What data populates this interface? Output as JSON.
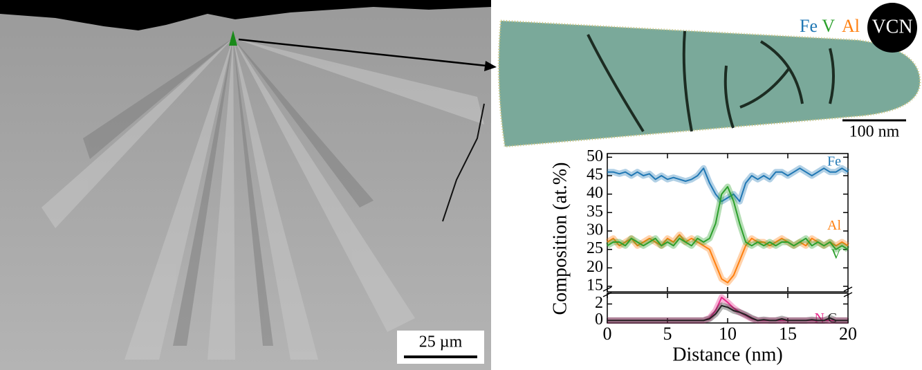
{
  "micrograph": {
    "scale_bar": "25 µm"
  },
  "reconstruction": {
    "legend": [
      "Fe",
      "V",
      "Al"
    ],
    "badge": "VCN",
    "scale_bar": "100 nm"
  },
  "chart_data": [
    {
      "type": "line",
      "ylabel": "Composition (at.%)",
      "x": [
        0,
        0.5,
        1,
        1.5,
        2,
        2.5,
        3,
        3.5,
        4,
        4.5,
        5,
        5.5,
        6,
        6.5,
        7,
        7.5,
        8,
        8.5,
        9,
        9.5,
        10,
        10.5,
        11,
        11.5,
        12,
        12.5,
        13,
        13.5,
        14,
        14.5,
        15,
        15.5,
        16,
        16.5,
        17,
        17.5,
        18,
        18.5,
        19,
        19.5,
        20
      ],
      "xlim": [
        0,
        20
      ],
      "xticks": [
        0,
        5,
        10,
        15,
        20
      ],
      "ylim": [
        13.5,
        51
      ],
      "yticks": [
        15,
        20,
        25,
        30,
        35,
        40,
        45,
        50
      ],
      "series": [
        {
          "name": "Fe",
          "color": "#1f77b4",
          "values": [
            46,
            46,
            45.5,
            46,
            45,
            46,
            45,
            45.5,
            44,
            45,
            44,
            44.5,
            44,
            43.5,
            44,
            45,
            47,
            43,
            40,
            38,
            39,
            40,
            38,
            43,
            45,
            44,
            45,
            44,
            46,
            46,
            45,
            46,
            47,
            46,
            45,
            46,
            47,
            46,
            46,
            47,
            46
          ]
        },
        {
          "name": "Al",
          "color": "#ff7f0e",
          "values": [
            27,
            28,
            26,
            27,
            28,
            26,
            27,
            28,
            27,
            26,
            28,
            27,
            29,
            27,
            28,
            27,
            26,
            25,
            21,
            17,
            16,
            18,
            22,
            26,
            28,
            27,
            27,
            26,
            27,
            28,
            27,
            26,
            27,
            26,
            28,
            27,
            26,
            27,
            26,
            27,
            26
          ]
        },
        {
          "name": "V",
          "color": "#2ca02c",
          "values": [
            26,
            27,
            27,
            26,
            28,
            27,
            26,
            27,
            28,
            26,
            27,
            26,
            28,
            27,
            26,
            28,
            27,
            28,
            32,
            40,
            42,
            38,
            32,
            27,
            26,
            27,
            26,
            27,
            26,
            27,
            27,
            26,
            27,
            28,
            26,
            27,
            26,
            27,
            25,
            26,
            25
          ]
        }
      ]
    },
    {
      "type": "line",
      "xlabel": "Distance (nm)",
      "x": [
        0,
        0.5,
        1,
        1.5,
        2,
        2.5,
        3,
        3.5,
        4,
        4.5,
        5,
        5.5,
        6,
        6.5,
        7,
        7.5,
        8,
        8.5,
        9,
        9.5,
        10,
        10.5,
        11,
        11.5,
        12,
        12.5,
        13,
        13.5,
        14,
        14.5,
        15,
        15.5,
        16,
        16.5,
        17,
        17.5,
        18,
        18.5,
        19,
        19.5,
        20
      ],
      "xlim": [
        0,
        20
      ],
      "xticks": [
        0,
        5,
        10,
        15,
        20
      ],
      "ylim": [
        -0.3,
        3.3
      ],
      "yticks": [
        0,
        2
      ],
      "series": [
        {
          "name": "N",
          "color": "#e7298a",
          "values": [
            0,
            0,
            0,
            0,
            0,
            0,
            0,
            0,
            0,
            0,
            0,
            0,
            0,
            0,
            0,
            0,
            0,
            0.3,
            1.2,
            2.8,
            2.2,
            1.5,
            1,
            0.6,
            0.2,
            0,
            0,
            0,
            0,
            0,
            0,
            0,
            0,
            0,
            0,
            0,
            0,
            0,
            0,
            0,
            0
          ]
        },
        {
          "name": "C",
          "color": "#222222",
          "values": [
            0,
            0,
            0,
            0,
            0,
            0,
            0,
            0,
            0,
            0,
            0,
            0,
            0,
            0,
            0,
            0,
            0,
            0.2,
            0.8,
            1.8,
            1.6,
            1.2,
            1,
            0.7,
            0.3,
            0,
            0.1,
            0,
            0,
            0.2,
            0,
            0,
            0,
            0,
            0.1,
            0,
            0,
            0.3,
            0,
            0,
            0
          ]
        }
      ]
    }
  ]
}
